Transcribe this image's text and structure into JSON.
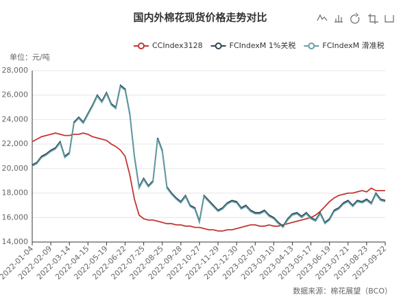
{
  "chart_data": {
    "type": "line",
    "title": "国内外棉花现货价格走势对比",
    "y_axis_label": "单位：元/吨",
    "source": "数据来源：棉花展望（BCO）",
    "categories": [
      "2022-01-04",
      null,
      null,
      null,
      "2022-02-09",
      null,
      null,
      null,
      "2022-03-14",
      null,
      null,
      null,
      "2022-04-15",
      null,
      null,
      null,
      "2022-05-19",
      null,
      null,
      null,
      "2022-06-22",
      null,
      null,
      null,
      "2022-07-25",
      null,
      null,
      null,
      "2022-08-25",
      null,
      null,
      null,
      "2022-09-28",
      null,
      null,
      null,
      "2022-10-27",
      null,
      null,
      null,
      "2022-11-29",
      null,
      null,
      null,
      "2022-12-30",
      null,
      null,
      null,
      "2023-02-07",
      null,
      null,
      null,
      "2023-03-10",
      null,
      null,
      null,
      "2023-04-13",
      null,
      null,
      null,
      "2023-05-17",
      null,
      null,
      null,
      "2023-06-19",
      null,
      null,
      null,
      "2023-07-21",
      null,
      null,
      null,
      "2023-08-23",
      null,
      null,
      null,
      "2023-09-22"
    ],
    "series": [
      {
        "name": "CCIndex3128",
        "color": "#c23531",
        "values": [
          22200,
          22400,
          22600,
          22700,
          22800,
          22900,
          22800,
          22700,
          22700,
          22800,
          22800,
          22900,
          22800,
          22600,
          22500,
          22400,
          22300,
          22000,
          21800,
          21500,
          21000,
          19500,
          17500,
          16200,
          15900,
          15800,
          15800,
          15700,
          15600,
          15500,
          15500,
          15400,
          15400,
          15300,
          15300,
          15200,
          15200,
          15100,
          15000,
          15000,
          14900,
          14900,
          15000,
          15000,
          15100,
          15200,
          15300,
          15400,
          15400,
          15300,
          15300,
          15400,
          15300,
          15300,
          15400,
          15500,
          15600,
          15700,
          15800,
          15900,
          16000,
          16200,
          16500,
          16900,
          17300,
          17600,
          17800,
          17900,
          18000,
          18000,
          18100,
          18200,
          18100,
          18400,
          18200,
          18200,
          18200
        ]
      },
      {
        "name": "FCIndexM 1%关税",
        "color": "#2f4554",
        "values": [
          20300,
          20500,
          21000,
          21200,
          21500,
          21700,
          22200,
          21000,
          21300,
          23800,
          24200,
          23800,
          24500,
          25200,
          26000,
          25500,
          26200,
          25300,
          25000,
          26800,
          26500,
          24500,
          21000,
          18500,
          19200,
          18600,
          19000,
          22500,
          21500,
          18500,
          18000,
          17600,
          17300,
          17800,
          17000,
          16800,
          15700,
          17800,
          17400,
          17000,
          16600,
          16800,
          17200,
          17400,
          17300,
          16800,
          17000,
          16600,
          16400,
          16400,
          16600,
          16200,
          16000,
          15600,
          15300,
          15900,
          16300,
          16400,
          16100,
          16400,
          16000,
          15800,
          16400,
          15600,
          15900,
          16600,
          16800,
          17200,
          17400,
          17000,
          17400,
          17300,
          17500,
          17200,
          18000,
          17500,
          17400
        ]
      },
      {
        "name": "FCIndexM 滑准税",
        "color": "#61a0a8",
        "values": [
          20200,
          20400,
          20900,
          21100,
          21400,
          21600,
          22100,
          20900,
          21200,
          23700,
          24100,
          23700,
          24400,
          25100,
          25900,
          25400,
          26100,
          25200,
          24900,
          26700,
          26400,
          24400,
          20900,
          18400,
          19100,
          18500,
          18900,
          22400,
          21400,
          18400,
          17900,
          17500,
          17200,
          17700,
          16900,
          16700,
          15600,
          17700,
          17300,
          16900,
          16500,
          16700,
          17100,
          17300,
          17200,
          16700,
          16900,
          16500,
          16300,
          16300,
          16500,
          16100,
          15900,
          15500,
          15200,
          15800,
          16200,
          16300,
          16000,
          16300,
          15900,
          15700,
          16300,
          15500,
          15800,
          16500,
          16700,
          17100,
          17300,
          16900,
          17300,
          17200,
          17400,
          17100,
          17900,
          17400,
          17300
        ]
      }
    ],
    "ylim": [
      14000,
      28000
    ],
    "yticks": [
      {
        "value": 14000,
        "label": "14,000"
      },
      {
        "value": 16000,
        "label": "16,000"
      },
      {
        "value": 18000,
        "label": "18,000"
      },
      {
        "value": 20000,
        "label": "20,000"
      },
      {
        "value": 22000,
        "label": "22,000"
      },
      {
        "value": 24000,
        "label": "24,000"
      },
      {
        "value": 26000,
        "label": "26,000"
      },
      {
        "value": 28000,
        "label": "28,000"
      }
    ],
    "grid": true
  }
}
